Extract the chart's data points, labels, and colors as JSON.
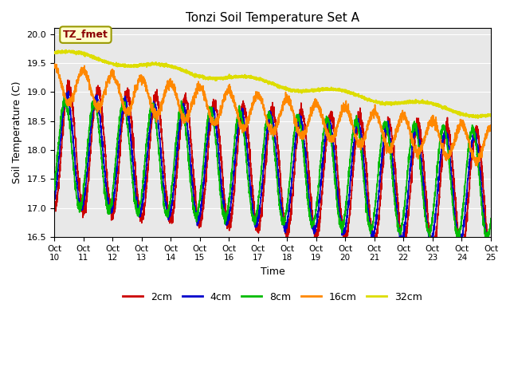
{
  "title": "Tonzi Soil Temperature Set A",
  "xlabel": "Time",
  "ylabel": "Soil Temperature (C)",
  "ylim": [
    16.5,
    20.1
  ],
  "xlim": [
    0,
    360
  ],
  "annotation": "TZ_fmet",
  "background_color": "#e8e8e8",
  "lines": {
    "2cm": {
      "color": "#cc0000",
      "lw": 1.2
    },
    "4cm": {
      "color": "#0000cc",
      "lw": 1.2
    },
    "8cm": {
      "color": "#00bb00",
      "lw": 1.2
    },
    "16cm": {
      "color": "#ff8800",
      "lw": 1.2
    },
    "32cm": {
      "color": "#dddd00",
      "lw": 1.5
    }
  },
  "xtick_labels": [
    "Oct\n10",
    "Oct\n11",
    "Oct\n12",
    "Oct\n13",
    "Oct\n14",
    "Oct\n15",
    "Oct\n16",
    "Oct\n17",
    "Oct\n18",
    "Oct\n19",
    "Oct\n20",
    "Oct\n21",
    "Oct\n22",
    "Oct\n23",
    "Oct\n24",
    "Oct\n25"
  ],
  "xtick_positions": [
    0,
    24,
    48,
    72,
    96,
    120,
    144,
    168,
    192,
    216,
    240,
    264,
    288,
    312,
    336,
    360
  ],
  "ytick_values": [
    16.5,
    17.0,
    17.5,
    18.0,
    18.5,
    19.0,
    19.5,
    20.0
  ],
  "legend_labels": [
    "2cm",
    "4cm",
    "8cm",
    "16cm",
    "32cm"
  ],
  "legend_colors": [
    "#cc0000",
    "#0000cc",
    "#00bb00",
    "#ff8800",
    "#dddd00"
  ]
}
